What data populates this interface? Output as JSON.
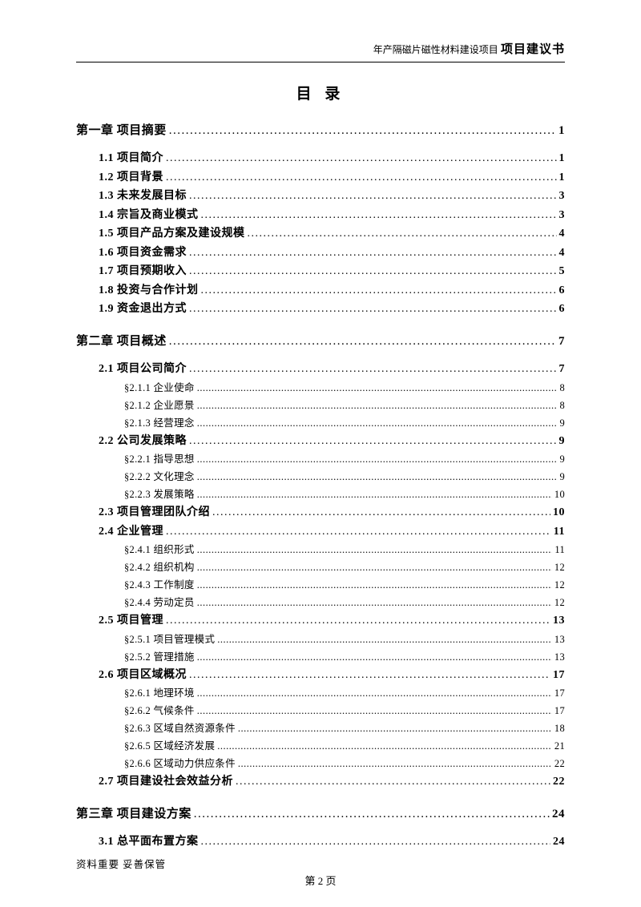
{
  "header": {
    "small": "年产隔磁片磁性材料建设项目",
    "big": "项目建议书"
  },
  "title": "目 录",
  "toc": [
    {
      "level": "chapter",
      "label": "第一章 项目摘要",
      "page": "1"
    },
    {
      "level": "section",
      "label": "1.1 项目简介",
      "page": "1"
    },
    {
      "level": "section",
      "label": "1.2 项目背景",
      "page": "1"
    },
    {
      "level": "section",
      "label": "1.3 未来发展目标",
      "page": "3"
    },
    {
      "level": "section",
      "label": "1.4 宗旨及商业模式",
      "page": "3"
    },
    {
      "level": "section",
      "label": "1.5 项目产品方案及建设规模",
      "page": "4"
    },
    {
      "level": "section",
      "label": "1.6 项目资金需求",
      "page": "4"
    },
    {
      "level": "section",
      "label": "1.7 项目预期收入",
      "page": "5"
    },
    {
      "level": "section",
      "label": "1.8 投资与合作计划",
      "page": "6"
    },
    {
      "level": "section",
      "label": "1.9 资金退出方式",
      "page": "6"
    },
    {
      "level": "chapter",
      "label": "第二章 项目概述",
      "page": "7"
    },
    {
      "level": "section",
      "label": "2.1 项目公司简介",
      "page": "7"
    },
    {
      "level": "subsection",
      "label": "§2.1.1 企业使命",
      "page": "8"
    },
    {
      "level": "subsection",
      "label": "§2.1.2 企业愿景",
      "page": "8"
    },
    {
      "level": "subsection",
      "label": "§2.1.3 经营理念",
      "page": "9"
    },
    {
      "level": "section",
      "label": "2.2 公司发展策略",
      "page": "9"
    },
    {
      "level": "subsection",
      "label": "§2.2.1 指导思想",
      "page": "9"
    },
    {
      "level": "subsection",
      "label": "§2.2.2 文化理念",
      "page": "9"
    },
    {
      "level": "subsection",
      "label": "§2.2.3 发展策略",
      "page": "10"
    },
    {
      "level": "section",
      "label": "2.3 项目管理团队介绍",
      "page": "10"
    },
    {
      "level": "section",
      "label": "2.4 企业管理",
      "page": "11"
    },
    {
      "level": "subsection",
      "label": "§2.4.1 组织形式",
      "page": "11"
    },
    {
      "level": "subsection",
      "label": "§2.4.2 组织机构",
      "page": "12"
    },
    {
      "level": "subsection",
      "label": "§2.4.3 工作制度",
      "page": "12"
    },
    {
      "level": "subsection",
      "label": "§2.4.4 劳动定员",
      "page": "12"
    },
    {
      "level": "section",
      "label": "2.5 项目管理",
      "page": "13"
    },
    {
      "level": "subsection",
      "label": "§2.5.1 项目管理模式",
      "page": "13"
    },
    {
      "level": "subsection",
      "label": "§2.5.2 管理措施",
      "page": "13"
    },
    {
      "level": "section",
      "label": "2.6 项目区域概况",
      "page": "17"
    },
    {
      "level": "subsection",
      "label": "§2.6.1 地理环境",
      "page": "17"
    },
    {
      "level": "subsection",
      "label": "§2.6.2 气候条件",
      "page": "17"
    },
    {
      "level": "subsection",
      "label": "§2.6.3 区域自然资源条件",
      "page": "18"
    },
    {
      "level": "subsection",
      "label": "§2.6.5 区域经济发展",
      "page": "21"
    },
    {
      "level": "subsection",
      "label": "§2.6.6 区域动力供应条件",
      "page": "22"
    },
    {
      "level": "section",
      "label": "2.7 项目建设社会效益分析",
      "page": "22"
    },
    {
      "level": "chapter",
      "label": "第三章 项目建设方案",
      "page": "24"
    },
    {
      "level": "section",
      "label": "3.1 总平面布置方案",
      "page": "24"
    }
  ],
  "footer": {
    "left": "资料重要  妥善保管",
    "center": "第 2 页"
  }
}
